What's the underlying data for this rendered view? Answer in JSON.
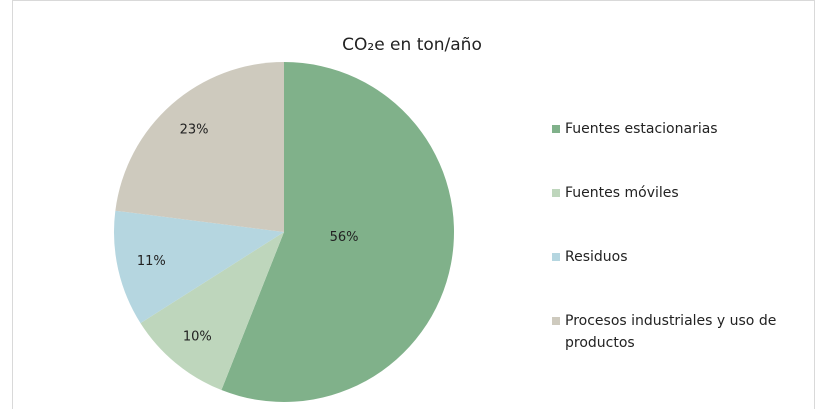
{
  "chart_data": {
    "type": "pie",
    "title": "CO₂e en ton/año",
    "categories": [
      "Fuentes estacionarias",
      "Fuentes móviles",
      "Residuos",
      "Procesos industriales y uso de productos"
    ],
    "values": [
      56,
      10,
      11,
      23
    ],
    "value_labels": [
      "56%",
      "10%",
      "11%",
      "23%"
    ],
    "colors": [
      "#80b18a",
      "#bed6bc",
      "#b5d6e0",
      "#cecabe"
    ],
    "legend": "right"
  }
}
